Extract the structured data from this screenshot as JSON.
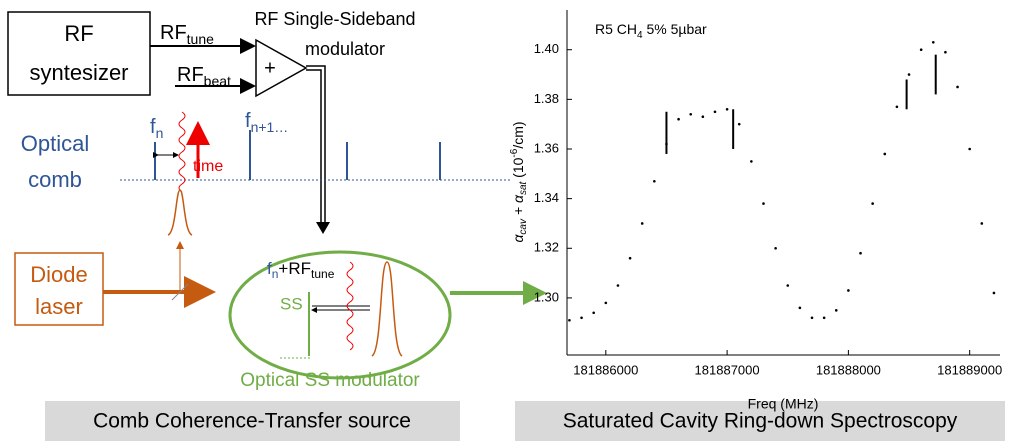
{
  "diagram": {
    "rf_box": [
      "RF",
      "syntesizer"
    ],
    "rf_tune": {
      "main": "RF",
      "sub": "tune"
    },
    "rf_beat": {
      "main": "RF",
      "sub": "beat"
    },
    "ssb_modulator": [
      "RF Single-Sideband",
      "modulator"
    ],
    "plus": "+",
    "optical_comb": [
      "Optical",
      "comb"
    ],
    "fn": {
      "main": "f",
      "sub": "n"
    },
    "fn1": {
      "main": "f",
      "sub": "n+1…"
    },
    "time": "time",
    "diode_laser": [
      "Diode",
      "laser"
    ],
    "fn_rf": {
      "main": "f",
      "sub": "n",
      "plus": "+RF",
      "sub2": "tune"
    },
    "ss": "SS",
    "optical_ss_modulator": "Optical SS modulator",
    "footer_left": "Comb Coherence-Transfer source",
    "footer_right": "Saturated Cavity Ring-down Spectroscopy"
  },
  "chart_data": {
    "type": "scatter",
    "annotation": [
      "R5  CH",
      "4",
      "  5%  5µbar"
    ],
    "xlabel": "Freq (MHz)",
    "ylabel": [
      "α",
      "cav",
      " + α",
      "sat",
      " (10",
      "-6",
      "/cm)"
    ],
    "x": [
      181885700,
      181885800,
      181885900,
      181886000,
      181886100,
      181886200,
      181886300,
      181886400,
      181886500,
      181886600,
      181886700,
      181886800,
      181886900,
      181887000,
      181887100,
      181887200,
      181887300,
      181887400,
      181887500,
      181887600,
      181887700,
      181887800,
      181887900,
      181888000,
      181888100,
      181888200,
      181888300,
      181888400,
      181888500,
      181888600,
      181888700,
      181888800,
      181888900,
      181889000,
      181889100,
      181889200
    ],
    "values": [
      1.291,
      1.292,
      1.294,
      1.298,
      1.305,
      1.316,
      1.33,
      1.347,
      1.362,
      1.372,
      1.374,
      1.373,
      1.375,
      1.376,
      1.37,
      1.355,
      1.338,
      1.32,
      1.305,
      1.296,
      1.292,
      1.292,
      1.295,
      1.303,
      1.318,
      1.338,
      1.358,
      1.377,
      1.39,
      1.4,
      1.403,
      1.399,
      1.385,
      1.36,
      1.33,
      1.302
    ],
    "color": "#000000",
    "dips": {
      "x": [
        181886500,
        181887050,
        181888480,
        181888720
      ],
      "low": [
        1.358,
        1.36,
        1.376,
        1.382
      ],
      "high": [
        1.375,
        1.376,
        1.388,
        1.398
      ]
    },
    "xlim": [
      181885680,
      181889250
    ],
    "ylim": [
      1.277,
      1.416
    ],
    "xticks": [
      181886000,
      181887000,
      181888000,
      181889000
    ],
    "yticks": [
      {
        "value": 1.3,
        "label": "1.30"
      },
      1.32,
      1.34,
      1.36,
      1.38,
      {
        "value": 1.4,
        "label": "1.40"
      }
    ]
  }
}
